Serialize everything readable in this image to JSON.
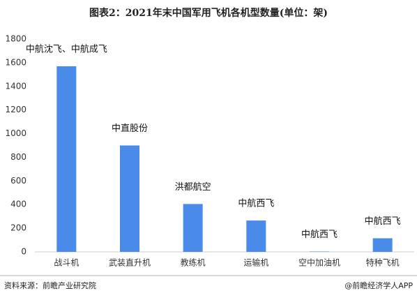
{
  "chart_data": {
    "type": "bar",
    "title": "图表2：2021年末中国军用飞机各机型数量(单位：架)",
    "categories": [
      "战斗机",
      "武装直升机",
      "教练机",
      "运输机",
      "空中加油机",
      "特种飞机"
    ],
    "values": [
      1570,
      900,
      405,
      265,
      3,
      115
    ],
    "annotations": [
      "中航沈飞、中航成飞",
      "中直股份",
      "洪都航空",
      "中航西飞",
      "中航西飞",
      "中航西飞"
    ],
    "color": "#4a8ae8",
    "ylim": [
      0,
      1800
    ],
    "yticks": [
      0,
      200,
      400,
      600,
      800,
      1000,
      1200,
      1400,
      1600,
      1800
    ],
    "grid": false,
    "source": "资料来源：前瞻产业研究院",
    "credit": "@前瞻经济学人APP"
  }
}
